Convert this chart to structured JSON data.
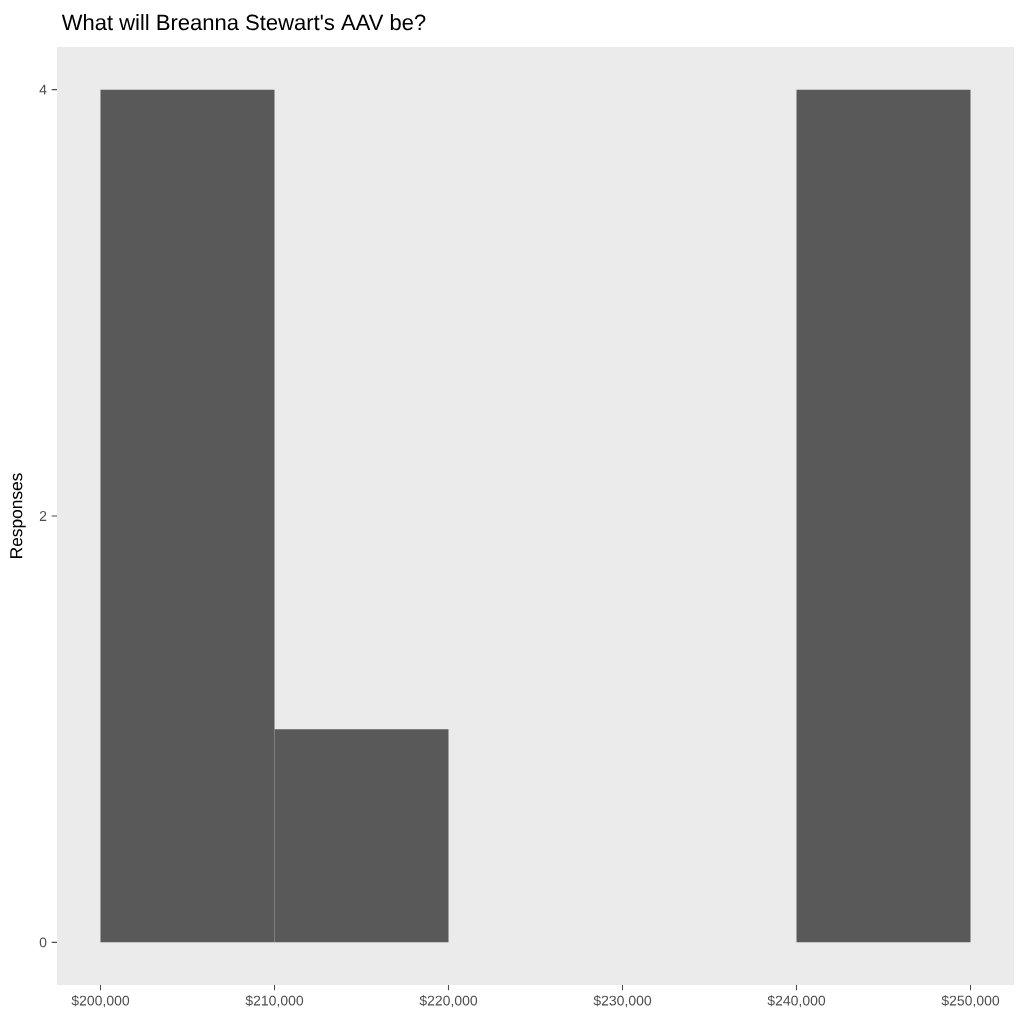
{
  "chart_data": {
    "type": "histogram",
    "title": "What will Breanna Stewart's AAV be?",
    "ylabel": "Responses",
    "bins": [
      200000,
      210000,
      220000,
      230000,
      240000,
      250000
    ],
    "values": [
      4,
      1,
      0,
      0,
      4
    ],
    "color": "#595959",
    "xlim": [
      197500,
      252500
    ],
    "ylim": [
      -0.2,
      4.2
    ],
    "xticks": [
      {
        "value": 200000,
        "label": "$200,000"
      },
      {
        "value": 210000,
        "label": "$210,000"
      },
      {
        "value": 220000,
        "label": "$220,000"
      },
      {
        "value": 230000,
        "label": "$230,000"
      },
      {
        "value": 240000,
        "label": "$240,000"
      },
      {
        "value": 250000,
        "label": "$250,000"
      }
    ],
    "yticks": [
      0,
      2,
      4
    ],
    "grid": false
  }
}
